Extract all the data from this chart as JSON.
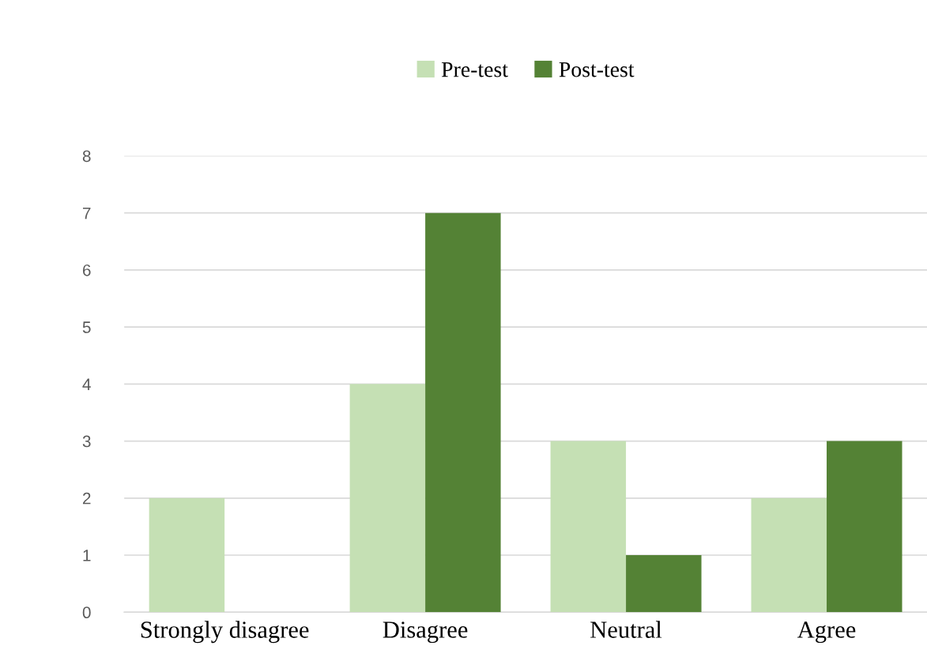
{
  "chart_data": {
    "type": "bar",
    "categories": [
      "Strongly disagree",
      "Disagree",
      "Neutral",
      "Agree"
    ],
    "series": [
      {
        "name": "Pre-test",
        "color": "#c5e0b4",
        "values": [
          2,
          4,
          3,
          2
        ]
      },
      {
        "name": "Post-test",
        "color": "#548235",
        "values": [
          0,
          7,
          1,
          3
        ]
      }
    ],
    "ylim": [
      0,
      8
    ],
    "yticks": [
      0,
      1,
      2,
      3,
      4,
      5,
      6,
      7,
      8
    ],
    "grid": "y",
    "legend": "top"
  }
}
